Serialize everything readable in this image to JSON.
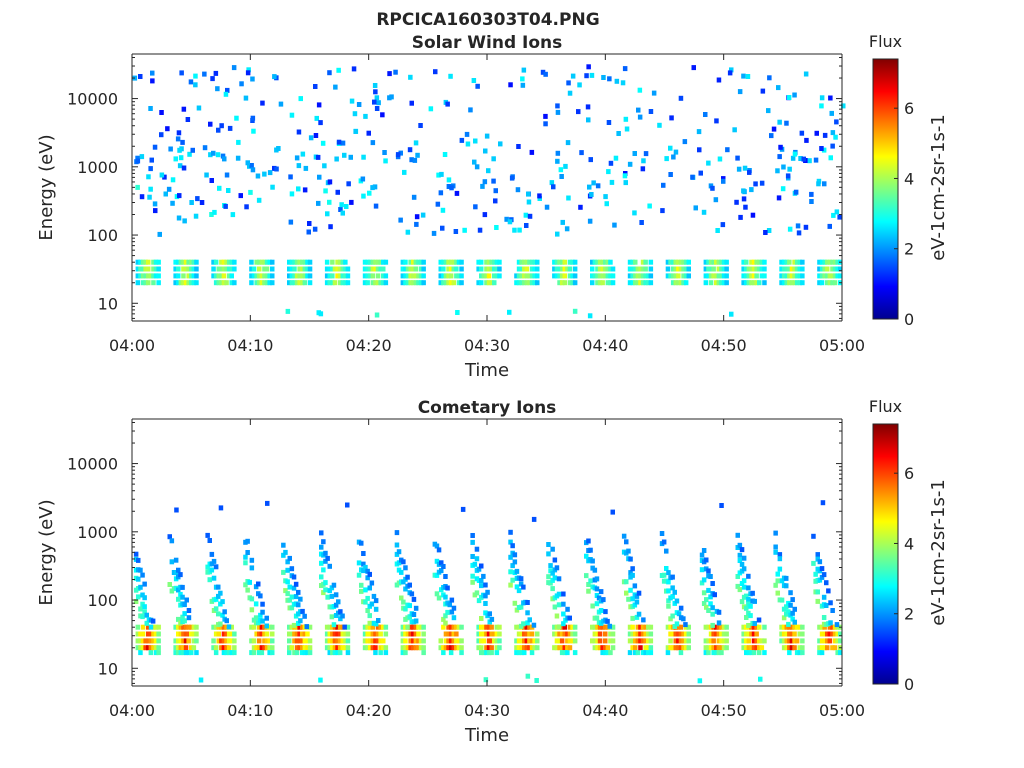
{
  "figure_title": "RPCICA160303T04.PNG",
  "chart_data": [
    {
      "type": "heatmap",
      "title": "Solar Wind Ions",
      "xlabel": "Time",
      "ylabel": "Energy (eV)",
      "x_range": [
        "04:00",
        "05:00"
      ],
      "x_ticks": [
        "04:00",
        "04:10",
        "04:20",
        "04:30",
        "04:40",
        "04:50",
        "05:00"
      ],
      "y_scale": "log",
      "y_range": [
        5.5,
        45000
      ],
      "y_ticks": [
        10,
        100,
        1000,
        10000
      ],
      "y_tick_labels": [
        "10",
        "100",
        "1000",
        "10000"
      ],
      "colorbar": {
        "title": "Flux",
        "label": "eV-1cm-2sr-1s-1",
        "colormap": "jet",
        "range": [
          0,
          7.4
        ],
        "ticks": [
          0,
          2,
          4,
          6
        ],
        "tick_labels": [
          "0",
          "2",
          "4",
          "6"
        ]
      },
      "pulse_period_min": 3.2,
      "low_energy_band": {
        "energy_range_eV": [
          20,
          40
        ],
        "peak_flux": 4.5
      },
      "scattered_flux_range": [
        1.0,
        2.8
      ],
      "scattered_energy_range_eV": [
        100,
        30000
      ]
    },
    {
      "type": "heatmap",
      "title": "Cometary Ions",
      "xlabel": "Time",
      "ylabel": "Energy (eV)",
      "x_range": [
        "04:00",
        "05:00"
      ],
      "x_ticks": [
        "04:00",
        "04:10",
        "04:20",
        "04:30",
        "04:40",
        "04:50",
        "05:00"
      ],
      "y_scale": "log",
      "y_range": [
        5.5,
        45000
      ],
      "y_ticks": [
        10,
        100,
        1000,
        10000
      ],
      "y_tick_labels": [
        "10",
        "100",
        "1000",
        "10000"
      ],
      "colorbar": {
        "title": "Flux",
        "label": "eV-1cm-2sr-1s-1",
        "colormap": "jet",
        "range": [
          0,
          7.4
        ],
        "ticks": [
          0,
          2,
          4,
          6
        ],
        "tick_labels": [
          "0",
          "2",
          "4",
          "6"
        ]
      },
      "pulse_period_min": 3.2,
      "low_energy_band": {
        "energy_range_eV": [
          20,
          40
        ],
        "peak_flux": 6.5
      },
      "dispersion_energy_range_eV": [
        40,
        900
      ],
      "scattered_flux_range": [
        1.2,
        3.5
      ]
    }
  ]
}
